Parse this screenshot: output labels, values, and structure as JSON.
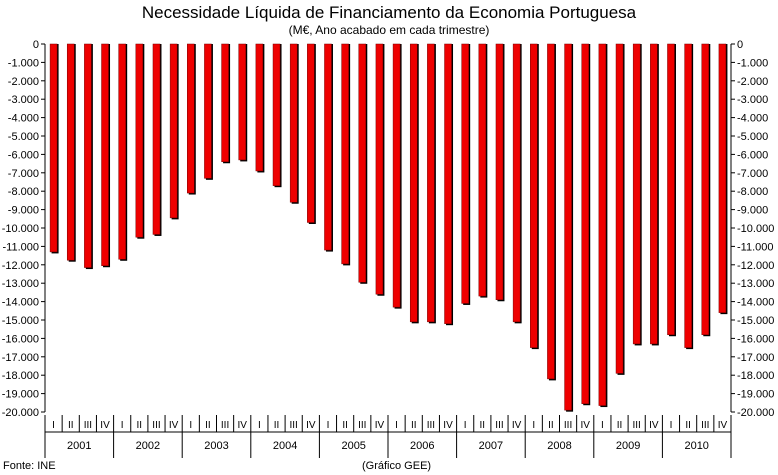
{
  "chart_data": {
    "type": "bar",
    "title": "Necessidade Líquida de Financiamento da Economia Portuguesa",
    "subtitle": "(M€, Ano acabado em cada trimestre)",
    "xlabel": "",
    "ylabel": "",
    "ylim": [
      -20000,
      0
    ],
    "yticks": [
      0,
      -1000,
      -2000,
      -3000,
      -4000,
      -5000,
      -6000,
      -7000,
      -8000,
      -9000,
      -10000,
      -11000,
      -12000,
      -13000,
      -14000,
      -15000,
      -16000,
      -17000,
      -18000,
      -19000,
      -20000
    ],
    "ytick_labels": [
      "0",
      "-1.000",
      "-2.000",
      "-3.000",
      "-4.000",
      "-5.000",
      "-6.000",
      "-7.000",
      "-8.000",
      "-9.000",
      "-10.000",
      "-11.000",
      "-12.000",
      "-13.000",
      "-14.000",
      "-15.000",
      "-16.000",
      "-17.000",
      "-18.000",
      "-19.000",
      "-20.000"
    ],
    "years": [
      "2001",
      "2002",
      "2003",
      "2004",
      "2005",
      "2006",
      "2007",
      "2008",
      "2009",
      "2010"
    ],
    "quarter_labels": [
      "I",
      "II",
      "III",
      "IV"
    ],
    "categories": [
      "2001 I",
      "2001 II",
      "2001 III",
      "2001 IV",
      "2002 I",
      "2002 II",
      "2002 III",
      "2002 IV",
      "2003 I",
      "2003 II",
      "2003 III",
      "2003 IV",
      "2004 I",
      "2004 II",
      "2004 III",
      "2004 IV",
      "2005 I",
      "2005 II",
      "2005 III",
      "2005 IV",
      "2006 I",
      "2006 II",
      "2006 III",
      "2006 IV",
      "2007 I",
      "2007 II",
      "2007 III",
      "2007 IV",
      "2008 I",
      "2008 II",
      "2008 III",
      "2008 IV",
      "2009 I",
      "2009 II",
      "2009 III",
      "2009 IV",
      "2010 I",
      "2010 II",
      "2010 III",
      "2010 IV"
    ],
    "values": [
      -11300,
      -11750,
      -12150,
      -12050,
      -11700,
      -10500,
      -10350,
      -9450,
      -8100,
      -7300,
      -6400,
      -6300,
      -6900,
      -7700,
      -8600,
      -9700,
      -11200,
      -11950,
      -12950,
      -13600,
      -14300,
      -15100,
      -15100,
      -15200,
      -14100,
      -13700,
      -13900,
      -15100,
      -16500,
      -18200,
      -19900,
      -19550,
      -19650,
      -17900,
      -16300,
      -16300,
      -15800,
      -16500,
      -15800,
      -14600
    ],
    "grid": false,
    "legend": "none",
    "colors": {
      "bar": "#ee0000",
      "bar_shadow": "#000000"
    }
  },
  "footer": {
    "source": "Fonte: INE",
    "credit": "(Gráfico GEE)"
  }
}
